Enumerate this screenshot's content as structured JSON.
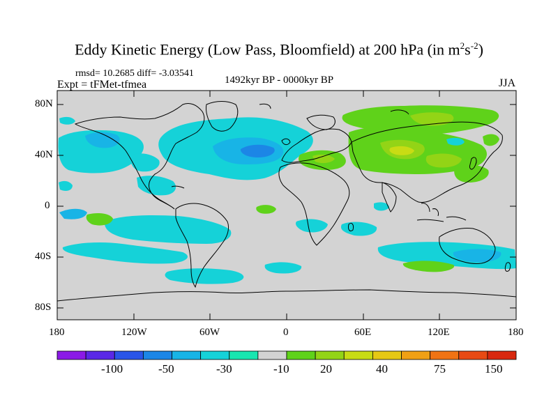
{
  "title": {
    "main": "Eddy Kinetic Energy (Low Pass, Bloomfield) at 200 hPa (in m",
    "sup1": "2",
    "mid": "s",
    "sup2": "-2",
    "end": ")"
  },
  "subtitle": {
    "stats": "rmsd= 10.2685 diff= -3.03541",
    "experiment": "Expt = tFMet-tfmea",
    "period": "1492kyr BP - 0000kyr BP",
    "season": "JJA"
  },
  "lat_labels": [
    "80N",
    "40N",
    "0",
    "40S",
    "80S"
  ],
  "lon_labels": [
    "180",
    "120W",
    "60W",
    "0",
    "60E",
    "120E",
    "180"
  ],
  "colorbar": {
    "colors": [
      "#8b1ae6",
      "#5a28e6",
      "#2a55e8",
      "#1c86e6",
      "#18b4e6",
      "#15d2d8",
      "#18e6b0",
      "#d3d3d3",
      "#5fd21a",
      "#93d416",
      "#c8dc14",
      "#e6c814",
      "#f0a014",
      "#f07314",
      "#e84a14",
      "#d8280f"
    ],
    "labels": [
      "-100",
      "-50",
      "-30",
      "-10",
      "20",
      "40",
      "75",
      "150"
    ]
  },
  "colors": {
    "background": "#d3d3d3",
    "coast": "#000000"
  }
}
